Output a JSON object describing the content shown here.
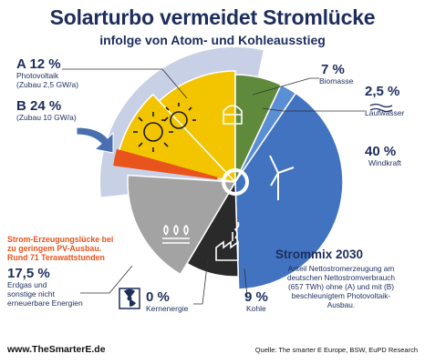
{
  "header": {
    "title": "Solarturbo vermeidet Stromlücke",
    "subtitle": "infolge von Atom- und Kohleausstieg"
  },
  "chart_data": {
    "type": "pie",
    "title": "Strommix 2030",
    "unit": "%",
    "slices": [
      {
        "key": "biomasse",
        "label": "Biomasse",
        "percent": "7 %",
        "value": 7,
        "color": "#5f8a3c"
      },
      {
        "key": "laufwasser",
        "label": "Laufwasser",
        "percent": "2,5 %",
        "value": 2.5,
        "color": "#5a8fd6"
      },
      {
        "key": "windkraft",
        "label": "Windkraft",
        "percent": "40 %",
        "value": 40,
        "color": "#4173c0"
      },
      {
        "key": "kohle",
        "label": "Kohle",
        "percent": "9 %",
        "value": 9,
        "color": "#2a2a2a"
      },
      {
        "key": "kernenergie",
        "label": "Kernenergie",
        "percent": "0 %",
        "value": 0,
        "color": "#4a4a4a"
      },
      {
        "key": "erdgas",
        "label": "Erdgas und sonstige nicht erneuerbare Energien",
        "percent": "17,5 %",
        "value": 17.5,
        "color": "#a3a3a3"
      },
      {
        "key": "pv_a",
        "label": "Photovoltaik (Zubau 2,5 GW/a)",
        "percent": "A 12 %",
        "value": 12,
        "color": "#f2c500"
      },
      {
        "key": "pv_b",
        "label": "(Zubau 10 GW/a)",
        "percent": "B 24 %",
        "value": 24,
        "color": "#f2c500"
      }
    ],
    "gap_note": "Strom-Erzeugungslücke bei zu geringem PV-Ausbau. Rund 71 Terawattstunden"
  },
  "labels": {
    "pv_a_head": "A 12 %",
    "pv_a_line1": "Photovoltaik",
    "pv_a_line2": "(Zubau 2,5 GW/a)",
    "pv_b_head": "B 24 %",
    "pv_b_line1": "(Zubau 10 GW/a)",
    "biomasse_pct": "7 %",
    "biomasse_name": "Biomasse",
    "laufwasser_pct": "2,5 %",
    "laufwasser_name": "Laufwasser",
    "wind_pct": "40 %",
    "wind_name": "Windkraft",
    "gap_line1": "Strom-Erzeugungslücke bei",
    "gap_line2": "zu geringem PV-Ausbau.",
    "gap_line3": "Rund 71 Terawattstunden",
    "erdgas_pct": "17,5 %",
    "erdgas_line1": "Erdgas und",
    "erdgas_line2": "sonstige nicht",
    "erdgas_line3": "erneuerbare Energien",
    "kern_pct": "0 %",
    "kern_name": "Kernenergie",
    "kohle_pct": "9 %",
    "kohle_name": "Kohle"
  },
  "strommix": {
    "heading": "Strommix 2030",
    "text_line1": "Anteil Nettostromerzeugung am",
    "text_line2": "deutschen Nettostromverbrauch",
    "text_line3": "(657 TWh) ohne (A) und mit (B)",
    "text_line4": "beschleunigtem Photovoltaik-",
    "text_line5": "Ausbau."
  },
  "footer": {
    "website": "www.TheSmarterE.de",
    "source": "Quelle: The smarter E Europe, BSW, EuPD Research"
  },
  "colors": {
    "title": "#1d2d5c",
    "accent_gap": "#e8541c",
    "pv_yellow": "#f2c500",
    "halo": "#c8d0e6"
  }
}
